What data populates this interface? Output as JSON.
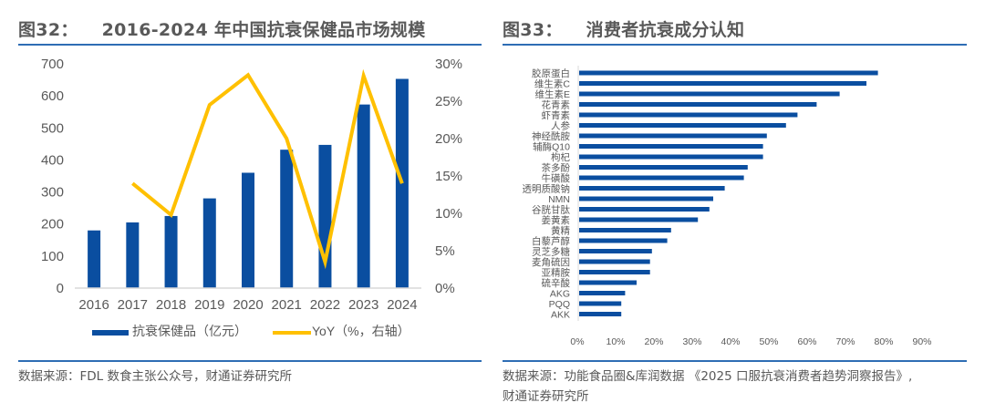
{
  "left_panel": {
    "fig_number": "图32：",
    "title": "2016-2024 年中国抗衰保健品市场规模",
    "source": "数据来源：FDL 数食主张公众号，财通证券研究所"
  },
  "right_panel": {
    "fig_number": "图33：",
    "title": "消费者抗衰成分认知",
    "source_line1": "数据来源：功能食品圈&库润数据 《2025 口服抗衰消费者趋势洞察报告》,",
    "source_line2": "财通证券研究所"
  },
  "colors": {
    "bar": "#0a4ea0",
    "line": "#ffc000",
    "axis": "#d9d9d9",
    "text": "#595959",
    "rule": "#2e6db4"
  },
  "chart_data": [
    {
      "type": "bar",
      "title": "2016-2024 年中国抗衰保健品市场规模",
      "categories": [
        "2016",
        "2017",
        "2018",
        "2019",
        "2020",
        "2021",
        "2022",
        "2023",
        "2024"
      ],
      "series": [
        {
          "name": "抗衰保健品（亿元）",
          "type": "bar",
          "axis": "left",
          "values": [
            180,
            205,
            225,
            280,
            360,
            432,
            447,
            573,
            653
          ]
        },
        {
          "name": "YoY（%，右轴）",
          "type": "line",
          "axis": "right",
          "values": [
            null,
            14.0,
            9.8,
            24.5,
            28.5,
            20.0,
            3.5,
            28.4,
            14.0
          ]
        }
      ],
      "y_left": {
        "min": 0,
        "max": 700,
        "ticks": [
          "0",
          "100",
          "200",
          "300",
          "400",
          "500",
          "600",
          "700"
        ]
      },
      "y_right": {
        "min": 0,
        "max": 30,
        "ticks": [
          "0%",
          "5%",
          "10%",
          "15%",
          "20%",
          "25%",
          "30%"
        ]
      },
      "legend": [
        "抗衰保健品（亿元）",
        "YoY（%，右轴）"
      ],
      "legend_position": "bottom",
      "grid": false
    },
    {
      "type": "bar",
      "orientation": "horizontal",
      "title": "消费者抗衰成分认知",
      "categories": [
        "胶原蛋白",
        "维生素C",
        "维生素E",
        "花青素",
        "虾青素",
        "人参",
        "神经酰胺",
        "辅酶Q10",
        "枸杞",
        "茶多酚",
        "牛磺酸",
        "透明质酸钠",
        "NMN",
        "谷胱甘肽",
        "姜黄素",
        "黄精",
        "白藜芦醇",
        "灵芝多糖",
        "麦角硫因",
        "亚精胺",
        "硫辛酸",
        "AKG",
        "PQQ",
        "AKK"
      ],
      "values": [
        78,
        75,
        68,
        62,
        57,
        54,
        49,
        48,
        48,
        44,
        43,
        38,
        35,
        34,
        31,
        24,
        23,
        19,
        18.5,
        18.5,
        15,
        12,
        11,
        11
      ],
      "unit": "%",
      "x_axis": {
        "min": 0,
        "max": 90,
        "ticks": [
          "0%",
          "10%",
          "20%",
          "30%",
          "40%",
          "50%",
          "60%",
          "70%",
          "80%",
          "90%"
        ]
      },
      "grid": false
    }
  ]
}
